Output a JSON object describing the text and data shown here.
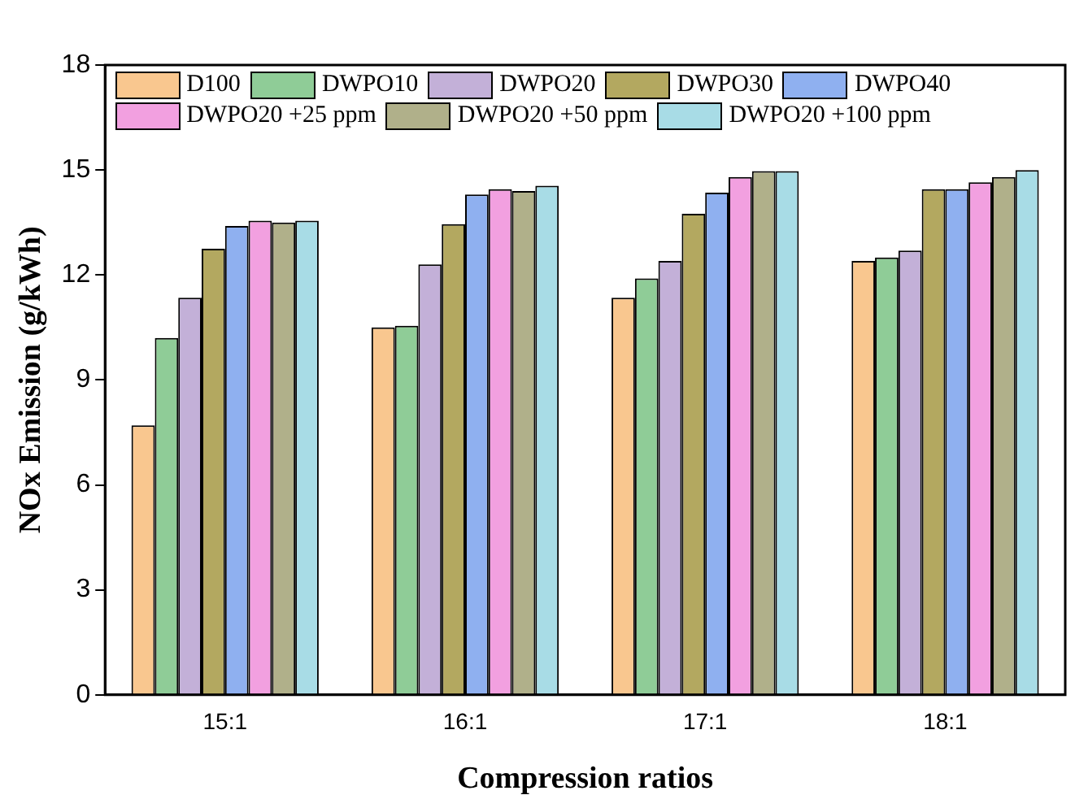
{
  "chart_data": {
    "type": "bar",
    "xlabel": "Compression ratios",
    "ylabel": "NOx Emission (g/kWh)",
    "categories": [
      "15:1",
      "16:1",
      "17:1",
      "18:1"
    ],
    "series": [
      {
        "name": "D100",
        "color": "#f9c78f",
        "values": [
          7.7,
          10.5,
          11.35,
          12.4
        ]
      },
      {
        "name": "DWPO10",
        "color": "#8fcc97",
        "values": [
          10.2,
          10.55,
          11.9,
          12.5
        ]
      },
      {
        "name": "DWPO20",
        "color": "#c3b0d8",
        "values": [
          11.35,
          12.3,
          12.4,
          12.7
        ]
      },
      {
        "name": "DWPO30",
        "color": "#b3a860",
        "values": [
          12.75,
          13.45,
          13.75,
          14.45
        ]
      },
      {
        "name": "DWPO40",
        "color": "#8fb0f0",
        "values": [
          13.4,
          14.3,
          14.35,
          14.45
        ]
      },
      {
        "name": "DWPO20 +25 ppm",
        "color": "#f2a0e0",
        "values": [
          13.55,
          14.45,
          14.8,
          14.65
        ]
      },
      {
        "name": "DWPO20 +50 ppm",
        "color": "#b0b08a",
        "values": [
          13.5,
          14.4,
          14.97,
          14.8
        ]
      },
      {
        "name": "DWPO20 +100 ppm",
        "color": "#a8dce6",
        "values": [
          13.55,
          14.55,
          14.97,
          15.0
        ]
      }
    ],
    "ylim": [
      0,
      18
    ],
    "yticks": [
      0,
      3,
      6,
      9,
      12,
      15,
      18
    ],
    "grid": false,
    "legend": "top left"
  }
}
